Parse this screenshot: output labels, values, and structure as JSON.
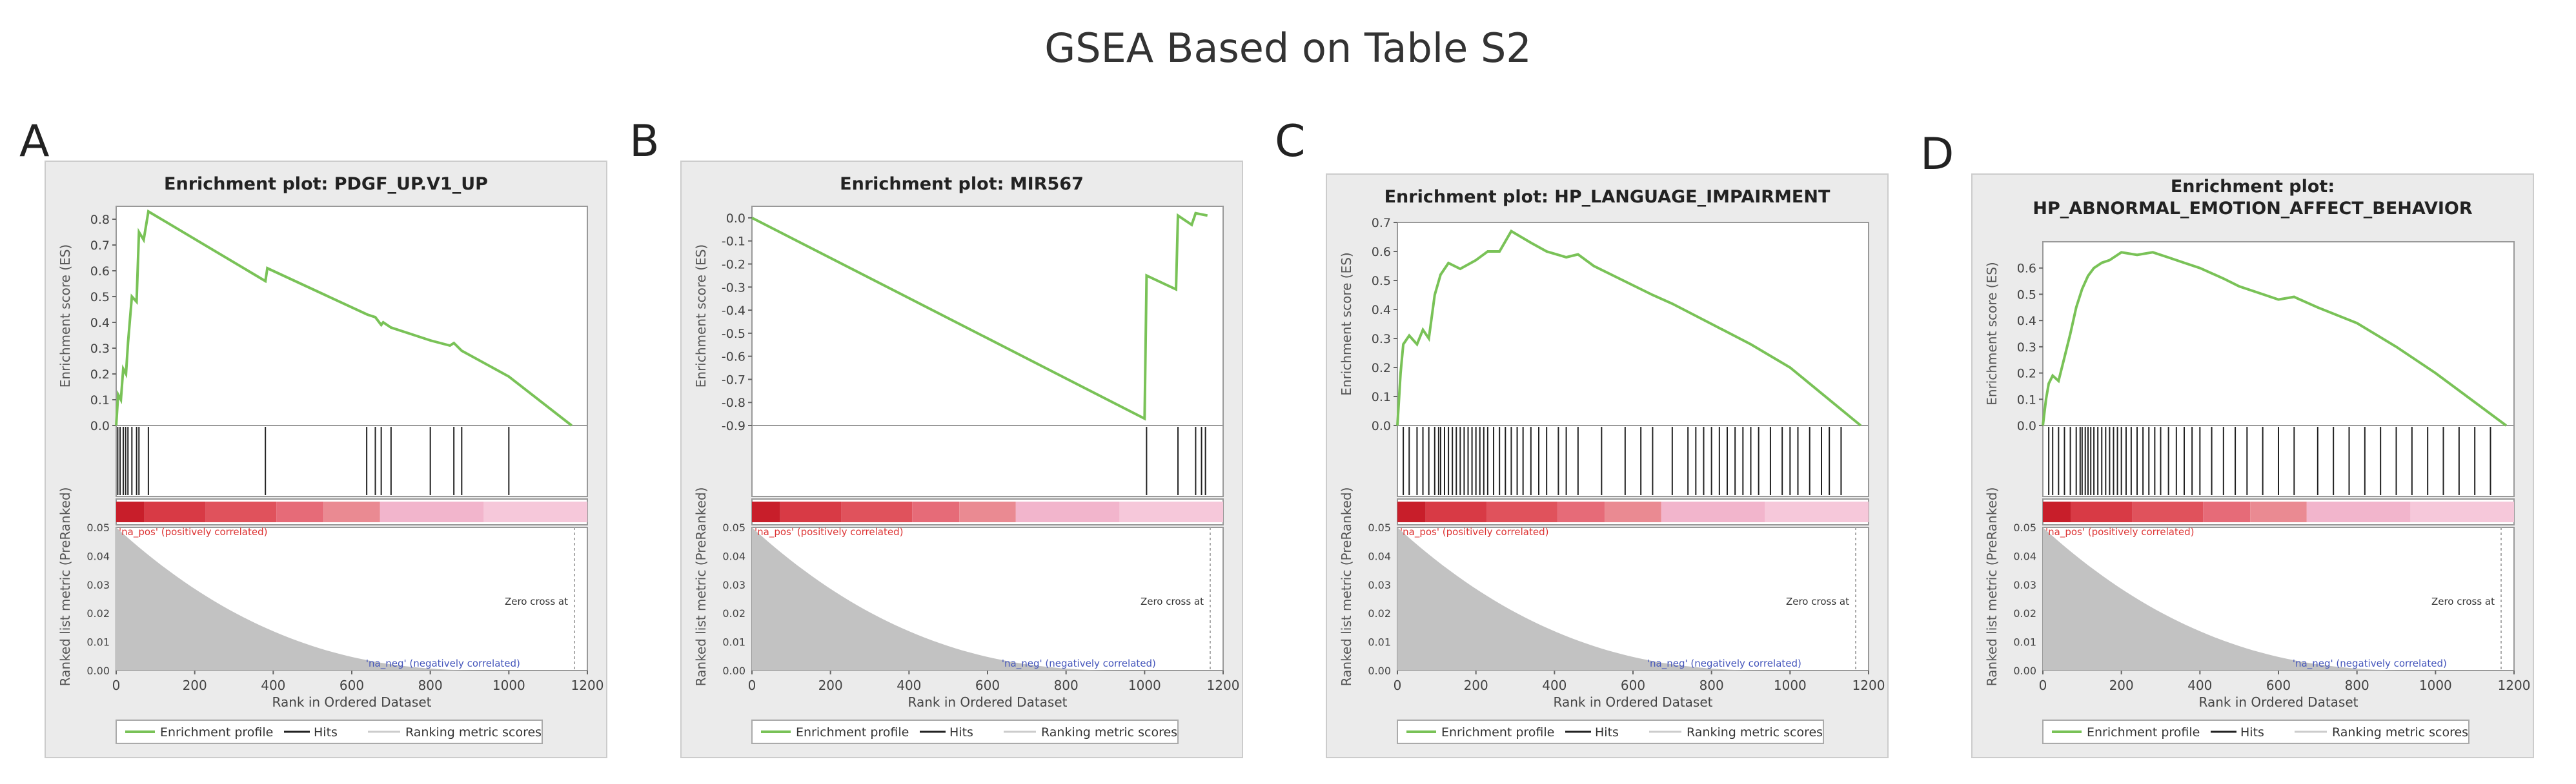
{
  "page_title": "GSEA Based on Table S2",
  "colors": {
    "enrichment_line": "#79c257",
    "hits": "#222222",
    "metric_fill": "#c2c2c2",
    "frame": "#999999",
    "panel_bg": "#ebebeb",
    "pos_label": "#dd3333",
    "neg_label": "#4455bb",
    "ranking_bar": [
      "#c81e2a",
      "#d83a45",
      "#e0525c",
      "#e66b78",
      "#ea8a92",
      "#f2b5cc",
      "#f6c8da"
    ]
  },
  "chart_data": [
    {
      "type": "line",
      "panel_letter": "A",
      "title": "Enrichment plot: PDGF_UP.V1_UP",
      "ylabel_top": "Enrichment score (ES)",
      "ylabel_bottom": "Ranked list metric (PreRanked)",
      "xlabel": "Rank in Ordered Dataset",
      "xlim": [
        0,
        1200
      ],
      "x_ticks": [
        "0",
        "200",
        "400",
        "600",
        "800",
        "1000",
        "1200"
      ],
      "ylim": [
        0,
        0.85
      ],
      "y_ticks": [
        "0.0",
        "0.1",
        "0.2",
        "0.3",
        "0.4",
        "0.5",
        "0.6",
        "0.7",
        "0.8"
      ],
      "y_tick_values": [
        0,
        0.1,
        0.2,
        0.3,
        0.4,
        0.5,
        0.6,
        0.7,
        0.8
      ],
      "metric_ylim": [
        0,
        0.05
      ],
      "metric_ticks": [
        "0.05",
        "0.04",
        "0.03",
        "0.02",
        "0.01",
        "0.00"
      ],
      "enrichment_profile": [
        [
          0,
          0
        ],
        [
          5,
          0.12
        ],
        [
          12,
          0.1
        ],
        [
          18,
          0.22
        ],
        [
          25,
          0.2
        ],
        [
          30,
          0.32
        ],
        [
          40,
          0.5
        ],
        [
          52,
          0.48
        ],
        [
          58,
          0.75
        ],
        [
          70,
          0.72
        ],
        [
          82,
          0.83
        ],
        [
          380,
          0.56
        ],
        [
          385,
          0.61
        ],
        [
          640,
          0.43
        ],
        [
          660,
          0.42
        ],
        [
          675,
          0.39
        ],
        [
          680,
          0.4
        ],
        [
          700,
          0.38
        ],
        [
          740,
          0.36
        ],
        [
          800,
          0.33
        ],
        [
          850,
          0.31
        ],
        [
          860,
          0.32
        ],
        [
          880,
          0.29
        ],
        [
          1000,
          0.19
        ],
        [
          1160,
          0
        ]
      ],
      "hits": [
        4,
        10,
        18,
        24,
        30,
        40,
        52,
        58,
        82,
        380,
        638,
        660,
        675,
        700,
        800,
        860,
        880,
        1000
      ],
      "zero_cross_label": "Zero cross at",
      "pos_label": "'na_pos' (positively correlated)",
      "neg_label": "'na_neg' (negatively correlated)",
      "legend": [
        "Enrichment profile",
        "Hits",
        "Ranking metric scores"
      ]
    },
    {
      "type": "line",
      "panel_letter": "B",
      "title": "Enrichment plot: MIR567",
      "ylabel_top": "Enrichment score (ES)",
      "ylabel_bottom": "Ranked list metric (PreRanked)",
      "xlabel": "Rank in Ordered Dataset",
      "xlim": [
        0,
        1200
      ],
      "x_ticks": [
        "0",
        "200",
        "400",
        "600",
        "800",
        "1000",
        "1200"
      ],
      "ylim": [
        -0.9,
        0.05
      ],
      "y_ticks": [
        "0.0",
        "-0.1",
        "-0.2",
        "-0.3",
        "-0.4",
        "-0.5",
        "-0.6",
        "-0.7",
        "-0.8",
        "-0.9"
      ],
      "y_tick_values": [
        0,
        -0.1,
        -0.2,
        -0.3,
        -0.4,
        -0.5,
        -0.6,
        -0.7,
        -0.8,
        -0.9
      ],
      "metric_ylim": [
        0,
        0.05
      ],
      "metric_ticks": [
        "0.05",
        "0.04",
        "0.03",
        "0.02",
        "0.01",
        "0.00"
      ],
      "enrichment_profile": [
        [
          0,
          0
        ],
        [
          1000,
          -0.87
        ],
        [
          1005,
          -0.25
        ],
        [
          1080,
          -0.31
        ],
        [
          1085,
          0.01
        ],
        [
          1120,
          -0.03
        ],
        [
          1130,
          0.02
        ],
        [
          1160,
          0.01
        ]
      ],
      "hits": [
        1005,
        1085,
        1130,
        1145,
        1155
      ],
      "zero_cross_label": "Zero cross at",
      "pos_label": "'na_pos' (positively correlated)",
      "neg_label": "'na_neg' (negatively correlated)",
      "legend": [
        "Enrichment profile",
        "Hits",
        "Ranking metric scores"
      ]
    },
    {
      "type": "line",
      "panel_letter": "C",
      "title": "Enrichment plot: HP_LANGUAGE_IMPAIRMENT",
      "ylabel_top": "Enrichment score (ES)",
      "ylabel_bottom": "Ranked list metric (PreRanked)",
      "xlabel": "Rank in Ordered Dataset",
      "xlim": [
        0,
        1200
      ],
      "x_ticks": [
        "0",
        "200",
        "400",
        "600",
        "800",
        "1000",
        "1200"
      ],
      "ylim": [
        0,
        0.7
      ],
      "y_ticks": [
        "0.0",
        "0.1",
        "0.2",
        "0.3",
        "0.4",
        "0.5",
        "0.6",
        "0.7"
      ],
      "y_tick_values": [
        0,
        0.1,
        0.2,
        0.3,
        0.4,
        0.5,
        0.6,
        0.7
      ],
      "metric_ylim": [
        0,
        0.05
      ],
      "metric_ticks": [
        "0.05",
        "0.04",
        "0.03",
        "0.02",
        "0.01",
        "0.00"
      ],
      "enrichment_profile": [
        [
          0,
          0
        ],
        [
          8,
          0.18
        ],
        [
          15,
          0.28
        ],
        [
          30,
          0.31
        ],
        [
          50,
          0.28
        ],
        [
          65,
          0.33
        ],
        [
          80,
          0.3
        ],
        [
          95,
          0.45
        ],
        [
          110,
          0.52
        ],
        [
          130,
          0.56
        ],
        [
          160,
          0.54
        ],
        [
          200,
          0.57
        ],
        [
          230,
          0.6
        ],
        [
          260,
          0.6
        ],
        [
          290,
          0.67
        ],
        [
          340,
          0.63
        ],
        [
          380,
          0.6
        ],
        [
          430,
          0.58
        ],
        [
          460,
          0.59
        ],
        [
          500,
          0.55
        ],
        [
          650,
          0.45
        ],
        [
          700,
          0.42
        ],
        [
          800,
          0.35
        ],
        [
          900,
          0.28
        ],
        [
          1000,
          0.2
        ],
        [
          1180,
          0
        ]
      ],
      "hits": [
        15,
        30,
        50,
        65,
        80,
        95,
        105,
        110,
        120,
        130,
        140,
        150,
        160,
        170,
        180,
        190,
        200,
        210,
        220,
        230,
        245,
        260,
        275,
        290,
        305,
        320,
        340,
        360,
        380,
        410,
        430,
        460,
        520,
        580,
        620,
        650,
        700,
        740,
        760,
        780,
        800,
        820,
        840,
        860,
        880,
        900,
        920,
        950,
        980,
        1000,
        1020,
        1050,
        1080,
        1100,
        1130
      ],
      "zero_cross_label": "Zero cross at",
      "pos_label": "'na_pos' (positively correlated)",
      "neg_label": "'na_neg' (negatively correlated)",
      "legend": [
        "Enrichment profile",
        "Hits",
        "Ranking metric scores"
      ]
    },
    {
      "type": "line",
      "panel_letter": "D",
      "title": "Enrichment plot:",
      "title_line2": "HP_ABNORMAL_EMOTION_AFFECT_BEHAVIOR",
      "ylabel_top": "Enrichment score (ES)",
      "ylabel_bottom": "Ranked list metric (PreRanked)",
      "xlabel": "Rank in Ordered Dataset",
      "xlim": [
        0,
        1200
      ],
      "x_ticks": [
        "0",
        "200",
        "400",
        "600",
        "800",
        "1000",
        "1200"
      ],
      "ylim": [
        0,
        0.7
      ],
      "y_ticks": [
        "0.0",
        "0.1",
        "0.2",
        "0.3",
        "0.4",
        "0.5",
        "0.6"
      ],
      "y_tick_values": [
        0,
        0.1,
        0.2,
        0.3,
        0.4,
        0.5,
        0.6
      ],
      "metric_ylim": [
        0,
        0.05
      ],
      "metric_ticks": [
        "0.05",
        "0.04",
        "0.03",
        "0.02",
        "0.01",
        "0.00"
      ],
      "enrichment_profile": [
        [
          0,
          0
        ],
        [
          8,
          0.1
        ],
        [
          15,
          0.16
        ],
        [
          25,
          0.19
        ],
        [
          40,
          0.17
        ],
        [
          55,
          0.26
        ],
        [
          70,
          0.35
        ],
        [
          85,
          0.45
        ],
        [
          100,
          0.52
        ],
        [
          115,
          0.57
        ],
        [
          130,
          0.6
        ],
        [
          150,
          0.62
        ],
        [
          170,
          0.63
        ],
        [
          200,
          0.66
        ],
        [
          240,
          0.65
        ],
        [
          280,
          0.66
        ],
        [
          320,
          0.64
        ],
        [
          360,
          0.62
        ],
        [
          400,
          0.6
        ],
        [
          460,
          0.56
        ],
        [
          500,
          0.53
        ],
        [
          560,
          0.5
        ],
        [
          600,
          0.48
        ],
        [
          640,
          0.49
        ],
        [
          700,
          0.45
        ],
        [
          800,
          0.39
        ],
        [
          900,
          0.3
        ],
        [
          1000,
          0.2
        ],
        [
          1180,
          0
        ]
      ],
      "hits": [
        15,
        25,
        40,
        55,
        70,
        85,
        95,
        100,
        108,
        115,
        122,
        130,
        140,
        150,
        160,
        170,
        180,
        190,
        200,
        212,
        225,
        240,
        255,
        270,
        285,
        300,
        320,
        340,
        360,
        380,
        400,
        430,
        460,
        490,
        520,
        560,
        600,
        640,
        700,
        740,
        780,
        820,
        860,
        900,
        940,
        980,
        1020,
        1060,
        1100,
        1140
      ],
      "zero_cross_label": "Zero cross at",
      "pos_label": "'na_pos' (positively correlated)",
      "neg_label": "'na_neg' (negatively correlated)",
      "legend": [
        "Enrichment profile",
        "Hits",
        "Ranking metric scores"
      ]
    }
  ]
}
